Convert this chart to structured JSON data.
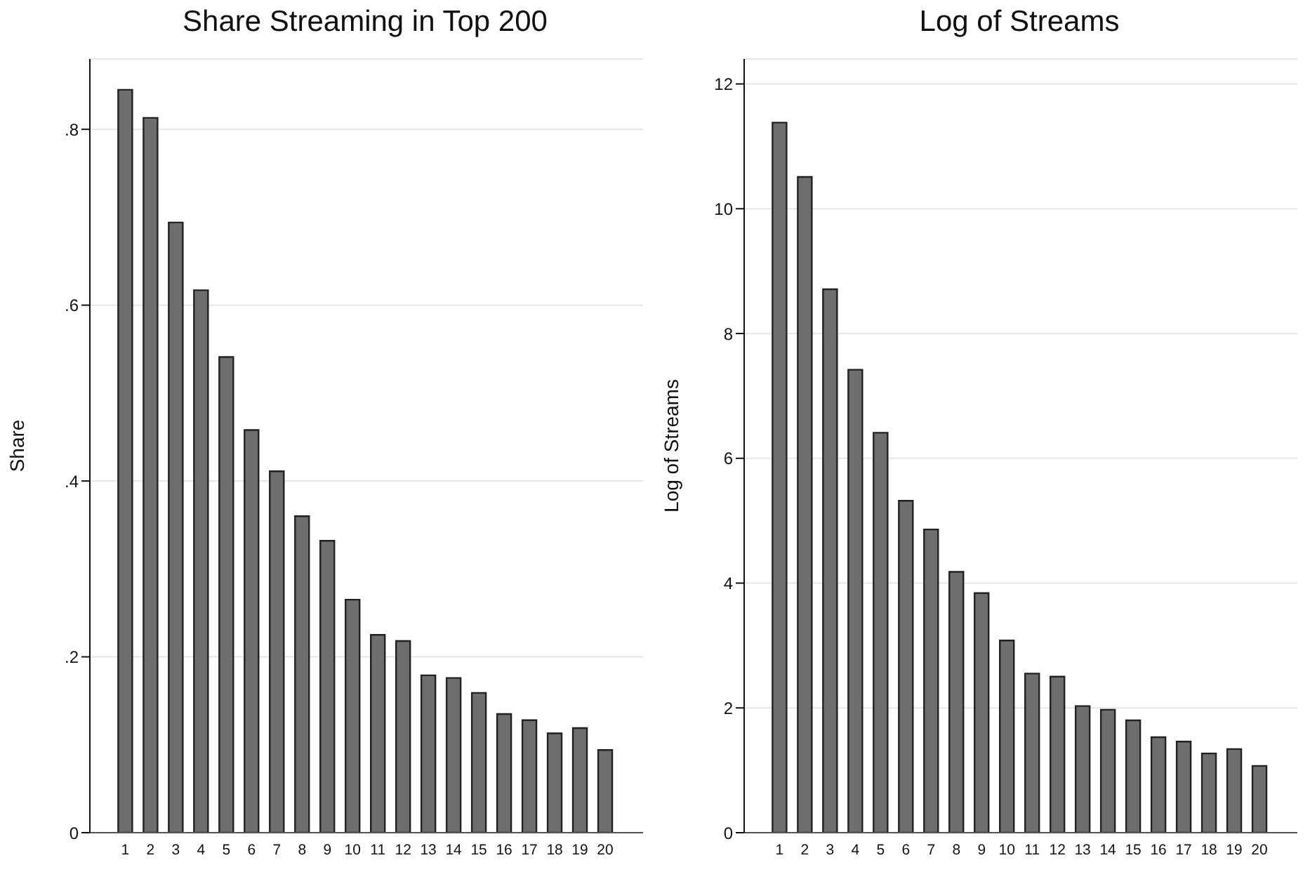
{
  "chart_data": [
    {
      "type": "bar",
      "title": "Share Streaming in Top 200",
      "ylabel": "Share",
      "x": [
        1,
        2,
        3,
        4,
        5,
        6,
        7,
        8,
        9,
        10,
        11,
        12,
        13,
        14,
        15,
        16,
        17,
        18,
        19,
        20
      ],
      "values": [
        0.845,
        0.813,
        0.694,
        0.617,
        0.541,
        0.458,
        0.411,
        0.36,
        0.332,
        0.265,
        0.225,
        0.218,
        0.179,
        0.176,
        0.159,
        0.135,
        0.128,
        0.113,
        0.119,
        0.094
      ],
      "color": "#6e6e6e",
      "xlim": [
        -0.4,
        21.5
      ],
      "xticks": [
        1,
        2,
        3,
        4,
        5,
        6,
        7,
        8,
        9,
        10,
        11,
        12,
        13,
        14,
        15,
        16,
        17,
        18,
        19,
        20
      ],
      "ylim": [
        0,
        0.88
      ],
      "yticks": [
        {
          "value": 0,
          "label": "0"
        },
        {
          "value": 0.2,
          "label": ".2"
        },
        {
          "value": 0.4,
          "label": ".4"
        },
        {
          "value": 0.6,
          "label": ".6"
        },
        {
          "value": 0.8,
          "label": ".8"
        }
      ],
      "grid": "y",
      "legend": false
    },
    {
      "type": "bar",
      "title": "Log of Streams",
      "ylabel": "Log of Streams",
      "x": [
        1,
        2,
        3,
        4,
        5,
        6,
        7,
        8,
        9,
        10,
        11,
        12,
        13,
        14,
        15,
        16,
        17,
        18,
        19,
        20
      ],
      "values": [
        11.38,
        10.51,
        8.71,
        7.42,
        6.41,
        5.32,
        4.86,
        4.18,
        3.84,
        3.08,
        2.55,
        2.5,
        2.03,
        1.97,
        1.8,
        1.53,
        1.46,
        1.27,
        1.34,
        1.07
      ],
      "color": "#6e6e6e",
      "xlim": [
        -0.4,
        21.5
      ],
      "xticks": [
        1,
        2,
        3,
        4,
        5,
        6,
        7,
        8,
        9,
        10,
        11,
        12,
        13,
        14,
        15,
        16,
        17,
        18,
        19,
        20
      ],
      "ylim": [
        0,
        12.4
      ],
      "yticks": [
        0,
        2,
        4,
        6,
        8,
        10,
        12
      ],
      "grid": "y",
      "legend": false
    }
  ]
}
